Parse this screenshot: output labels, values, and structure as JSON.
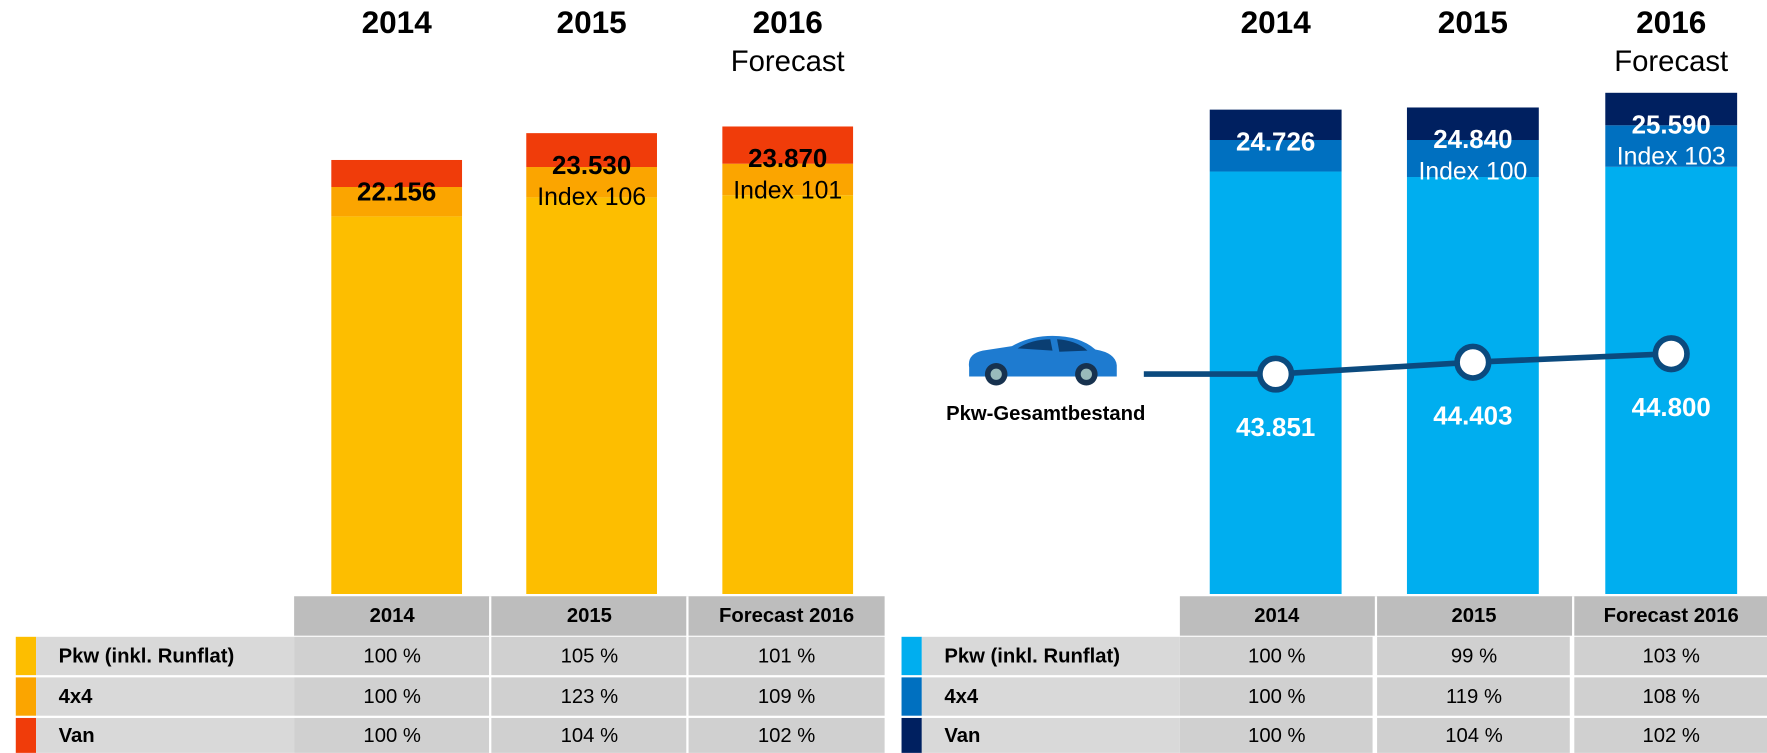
{
  "chart_data": [
    {
      "type": "stacked_bar",
      "categories": [
        "2014",
        "2015",
        "2016"
      ],
      "forecast_label": "Forecast",
      "series": [
        {
          "name": "Pkw (inkl. Runflat)",
          "color": "#FDBE00",
          "values": [
            19.28,
            20.25,
            20.36
          ]
        },
        {
          "name": "4x4",
          "color": "#FBA500",
          "values": [
            1.5,
            1.55,
            1.61
          ]
        },
        {
          "name": "Van",
          "color": "#F03C0A",
          "values": [
            1.38,
            1.73,
            1.9
          ]
        }
      ],
      "total_labels": [
        "22.156",
        "23.530",
        "23.870"
      ],
      "index_labels": [
        null,
        "Index 106",
        "Index 101"
      ],
      "label_color": "#000000",
      "table": {
        "columns": [
          "2014",
          "2015",
          "Forecast 2016"
        ],
        "rows": [
          [
            "100 %",
            "105 %",
            "101 %"
          ],
          [
            "100 %",
            "123 %",
            "109 %"
          ],
          [
            "100 %",
            "104 %",
            "102 %"
          ]
        ]
      }
    },
    {
      "type": "stacked_bar",
      "categories": [
        "2014",
        "2015",
        "2016"
      ],
      "forecast_label": "Forecast",
      "series": [
        {
          "name": "Pkw (inkl. Runflat)",
          "color": "#00AEEF",
          "values": [
            21.57,
            21.29,
            21.81
          ]
        },
        {
          "name": "4x4",
          "color": "#0070C0",
          "values": [
            1.61,
            1.89,
            2.12
          ]
        },
        {
          "name": "Van",
          "color": "#002060",
          "values": [
            1.55,
            1.66,
            1.66
          ]
        }
      ],
      "total_labels": [
        "24.726",
        "24.840",
        "25.590"
      ],
      "index_labels": [
        null,
        "Index 100",
        "Index 103"
      ],
      "label_color": "#FFFFFF",
      "line": {
        "name": "Pkw-Gesamtbestand",
        "color": "#0B4A7E",
        "values": [
          43.851,
          44.403,
          44.8
        ],
        "value_labels": [
          "43.851",
          "44.403",
          "44.800"
        ]
      },
      "table": {
        "columns": [
          "2014",
          "2015",
          "Forecast 2016"
        ],
        "rows": [
          [
            "100 %",
            "99 %",
            "103 %"
          ],
          [
            "100 %",
            "119 %",
            "108 %"
          ],
          [
            "100 %",
            "104 %",
            "102 %"
          ]
        ]
      }
    }
  ]
}
